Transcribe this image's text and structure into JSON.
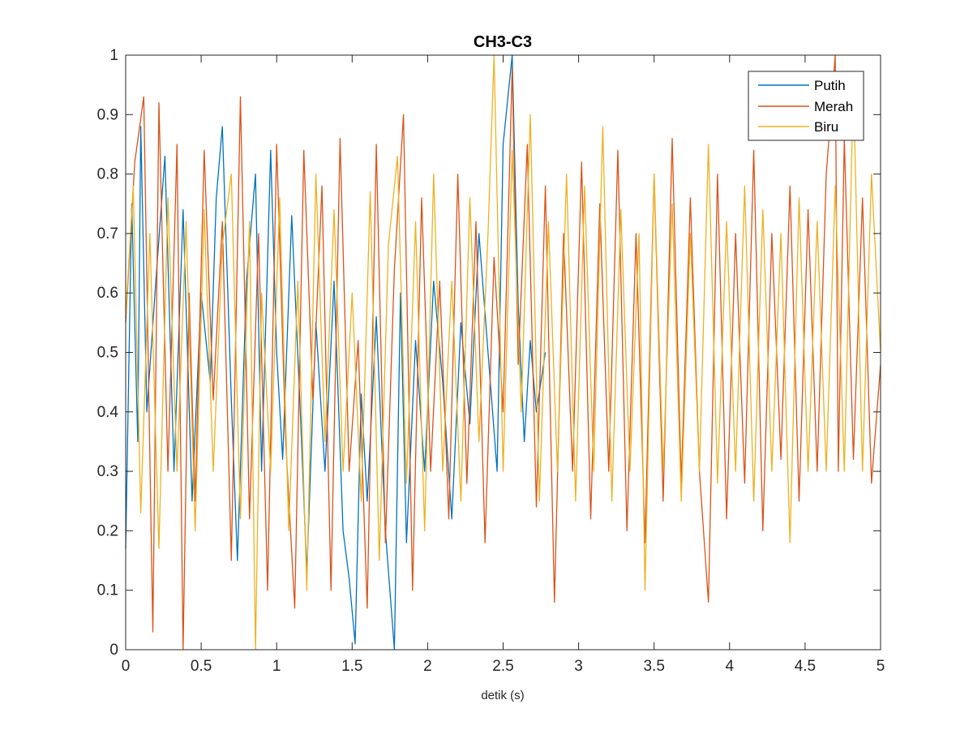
{
  "chart_data": {
    "type": "line",
    "title": "CH3-C3",
    "xlabel": "detik (s)",
    "ylabel": "",
    "xlim": [
      0,
      5
    ],
    "ylim": [
      0,
      1
    ],
    "xticks": [
      "0",
      "0.5",
      "1",
      "1.5",
      "2",
      "2.5",
      "3",
      "3.5",
      "4",
      "4.5",
      "5"
    ],
    "yticks": [
      "0",
      "0.1",
      "0.2",
      "0.3",
      "0.4",
      "0.5",
      "0.6",
      "0.7",
      "0.8",
      "0.9",
      "1"
    ],
    "grid": false,
    "legend_position": "top-right",
    "series": [
      {
        "name": "Putih",
        "color": "#0072BD",
        "x": [
          0,
          0.04,
          0.08,
          0.1,
          0.14,
          0.2,
          0.26,
          0.32,
          0.38,
          0.44,
          0.5,
          0.56,
          0.6,
          0.64,
          0.7,
          0.74,
          0.8,
          0.86,
          0.9,
          0.96,
          1.0,
          1.04,
          1.1,
          1.16,
          1.2,
          1.26,
          1.32,
          1.38,
          1.44,
          1.48,
          1.52,
          1.56,
          1.6,
          1.66,
          1.72,
          1.78,
          1.82,
          1.86,
          1.92,
          1.98,
          2.04,
          2.1,
          2.16,
          2.22,
          2.28,
          2.34,
          2.4,
          2.46,
          2.5,
          2.56,
          2.6,
          2.64,
          2.68,
          2.72,
          2.78
        ],
        "y": [
          0.17,
          0.75,
          0.35,
          0.88,
          0.4,
          0.62,
          0.83,
          0.3,
          0.74,
          0.25,
          0.6,
          0.45,
          0.76,
          0.88,
          0.42,
          0.15,
          0.62,
          0.8,
          0.3,
          0.84,
          0.5,
          0.32,
          0.73,
          0.38,
          0.13,
          0.55,
          0.3,
          0.62,
          0.2,
          0.12,
          0.01,
          0.43,
          0.25,
          0.56,
          0.2,
          0.0,
          0.6,
          0.18,
          0.52,
          0.3,
          0.62,
          0.45,
          0.22,
          0.55,
          0.38,
          0.7,
          0.5,
          0.3,
          0.85,
          1.0,
          0.58,
          0.35,
          0.52,
          0.4,
          0.5
        ]
      },
      {
        "name": "Merah",
        "color": "#D95319",
        "x": [
          0,
          0.06,
          0.12,
          0.18,
          0.22,
          0.28,
          0.34,
          0.38,
          0.42,
          0.46,
          0.52,
          0.58,
          0.64,
          0.7,
          0.76,
          0.82,
          0.88,
          0.94,
          1.0,
          1.06,
          1.12,
          1.18,
          1.24,
          1.3,
          1.36,
          1.42,
          1.48,
          1.54,
          1.6,
          1.66,
          1.72,
          1.78,
          1.84,
          1.9,
          1.96,
          2.02,
          2.08,
          2.14,
          2.2,
          2.26,
          2.32,
          2.38,
          2.44,
          2.5,
          2.56,
          2.6,
          2.66,
          2.72,
          2.78,
          2.84,
          2.9,
          2.96,
          3.02,
          3.08,
          3.14,
          3.2,
          3.26,
          3.32,
          3.38,
          3.44,
          3.5,
          3.56,
          3.62,
          3.68,
          3.74,
          3.8,
          3.86,
          3.92,
          3.98,
          4.04,
          4.1,
          4.16,
          4.22,
          4.28,
          4.34,
          4.4,
          4.46,
          4.52,
          4.58,
          4.64,
          4.7,
          4.72,
          4.76,
          4.82,
          4.88,
          4.94,
          5.0
        ],
        "y": [
          0.55,
          0.82,
          0.93,
          0.03,
          0.92,
          0.3,
          0.85,
          0.0,
          0.6,
          0.25,
          0.84,
          0.42,
          0.72,
          0.15,
          0.93,
          0.22,
          0.7,
          0.1,
          0.85,
          0.35,
          0.07,
          0.84,
          0.42,
          0.78,
          0.1,
          0.86,
          0.3,
          0.52,
          0.07,
          0.85,
          0.18,
          0.64,
          0.9,
          0.1,
          0.76,
          0.3,
          0.62,
          0.22,
          0.8,
          0.28,
          0.72,
          0.18,
          0.66,
          0.4,
          0.98,
          0.48,
          0.85,
          0.24,
          0.78,
          0.08,
          0.7,
          0.3,
          0.82,
          0.22,
          0.75,
          0.3,
          0.84,
          0.2,
          0.7,
          0.18,
          0.8,
          0.25,
          0.86,
          0.28,
          0.76,
          0.3,
          0.08,
          0.8,
          0.22,
          0.7,
          0.28,
          0.84,
          0.2,
          0.7,
          0.32,
          0.78,
          0.25,
          0.74,
          0.3,
          0.8,
          1.0,
          0.3,
          0.86,
          0.32,
          0.76,
          0.28,
          0.48
        ]
      },
      {
        "name": "Biru",
        "color": "#EDB120",
        "x": [
          0,
          0.05,
          0.1,
          0.16,
          0.22,
          0.28,
          0.34,
          0.4,
          0.46,
          0.52,
          0.58,
          0.64,
          0.7,
          0.76,
          0.82,
          0.86,
          0.9,
          0.96,
          1.02,
          1.08,
          1.14,
          1.2,
          1.26,
          1.32,
          1.38,
          1.44,
          1.5,
          1.56,
          1.62,
          1.68,
          1.74,
          1.8,
          1.86,
          1.92,
          1.98,
          2.04,
          2.1,
          2.16,
          2.22,
          2.28,
          2.34,
          2.4,
          2.44,
          2.5,
          2.56,
          2.62,
          2.68,
          2.74,
          2.8,
          2.86,
          2.92,
          2.98,
          3.04,
          3.1,
          3.16,
          3.22,
          3.28,
          3.34,
          3.4,
          3.44,
          3.5,
          3.56,
          3.62,
          3.68,
          3.74,
          3.8,
          3.86,
          3.92,
          3.98,
          4.04,
          4.1,
          4.16,
          4.22,
          4.28,
          4.34,
          4.4,
          4.46,
          4.52,
          4.58,
          4.64,
          4.7,
          4.76,
          4.82,
          4.88,
          4.94,
          5.0
        ],
        "y": [
          0.56,
          0.78,
          0.23,
          0.7,
          0.17,
          0.76,
          0.3,
          0.72,
          0.2,
          0.74,
          0.3,
          0.68,
          0.8,
          0.22,
          0.72,
          0.0,
          0.6,
          0.3,
          0.76,
          0.2,
          0.62,
          0.1,
          0.8,
          0.35,
          0.74,
          0.3,
          0.6,
          0.25,
          0.77,
          0.15,
          0.68,
          0.83,
          0.28,
          0.72,
          0.2,
          0.8,
          0.3,
          0.62,
          0.25,
          0.76,
          0.35,
          0.7,
          1.0,
          0.3,
          0.84,
          0.4,
          0.9,
          0.25,
          0.72,
          0.3,
          0.8,
          0.25,
          0.78,
          0.3,
          0.88,
          0.25,
          0.74,
          0.3,
          0.7,
          0.1,
          0.8,
          0.3,
          0.75,
          0.25,
          0.7,
          0.3,
          0.85,
          0.28,
          0.72,
          0.3,
          0.78,
          0.25,
          0.74,
          0.3,
          0.7,
          0.18,
          0.76,
          0.3,
          0.72,
          0.3,
          0.78,
          0.3,
          0.95,
          0.3,
          0.8,
          0.5
        ]
      }
    ]
  }
}
